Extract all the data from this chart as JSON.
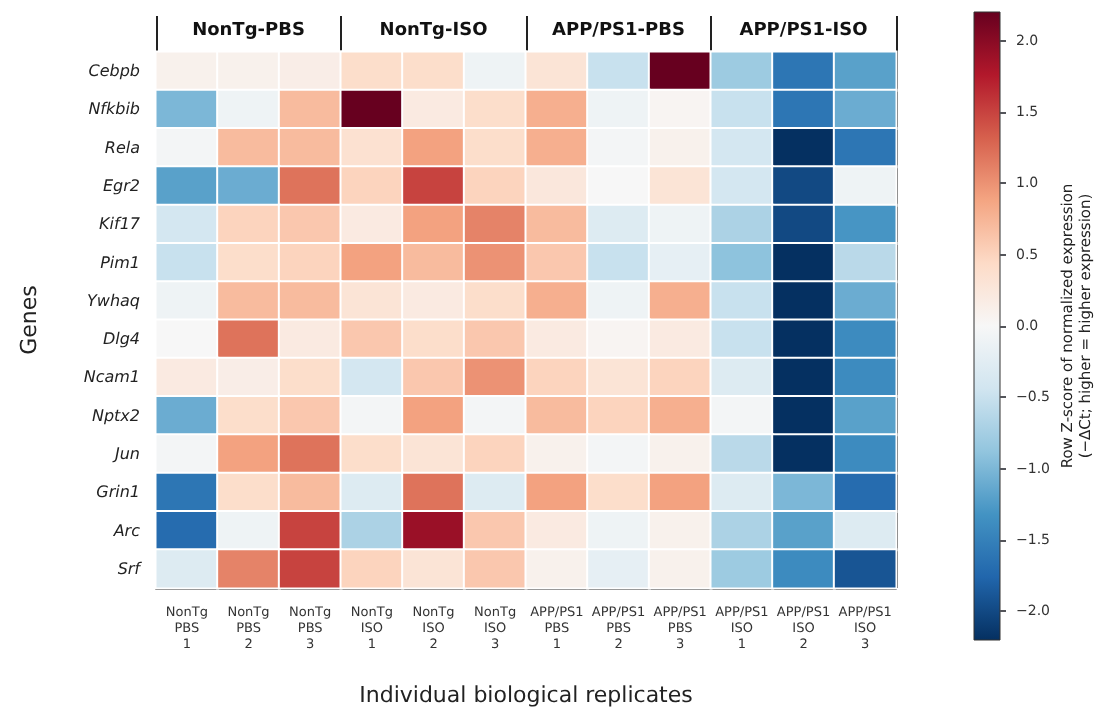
{
  "chart_data": {
    "type": "heatmap",
    "xlabel": "Individual biological replicates",
    "ylabel": "Genes",
    "clabel": "Row Z-score of normalized expression\n(−ΔCt; higher = higher expression)",
    "annotations": [
      "NonTg-PBS",
      "NonTg-ISO",
      "APP/PS1-PBS",
      "APP/PS1-ISO"
    ],
    "categories": [
      "NonTg\nPBS\n1",
      "NonTg\nPBS\n2",
      "NonTg\nPBS\n3",
      "NonTg\nISO\n1",
      "NonTg\nISO\n2",
      "NonTg\nISO\n3",
      "APP/PS1\nPBS\n1",
      "APP/PS1\nPBS\n2",
      "APP/PS1\nPBS\n3",
      "APP/PS1\nISO\n1",
      "APP/PS1\nISO\n2",
      "APP/PS1\nISO\n3"
    ],
    "y_categories": [
      "Cebpb",
      "Nfkbib",
      "Rela",
      "Egr2",
      "Kif17",
      "Pim1",
      "Ywhaq",
      "Dlg4",
      "Ncam1",
      "Nptx2",
      "Jun",
      "Grin1",
      "Arc",
      "Srf"
    ],
    "cells": [
      [
        0.1,
        0.1,
        0.15,
        0.4,
        0.4,
        -0.1,
        0.3,
        -0.5,
        2.2,
        -0.8,
        -1.6,
        -1.2
      ],
      [
        -1.0,
        -0.1,
        0.7,
        2.2,
        0.2,
        0.4,
        0.8,
        -0.1,
        0.05,
        -0.5,
        -1.6,
        -1.1
      ],
      [
        -0.05,
        0.7,
        0.7,
        0.35,
        0.9,
        0.4,
        0.8,
        -0.05,
        0.1,
        -0.4,
        -2.2,
        -1.6
      ],
      [
        -1.2,
        -1.1,
        1.2,
        0.5,
        1.5,
        0.5,
        0.25,
        0.0,
        0.3,
        -0.4,
        -2.0,
        -0.1
      ],
      [
        -0.4,
        0.5,
        0.6,
        0.2,
        0.9,
        1.1,
        0.7,
        -0.3,
        -0.1,
        -0.7,
        -2.0,
        -1.3
      ],
      [
        -0.5,
        0.4,
        0.5,
        0.9,
        0.7,
        1.0,
        0.6,
        -0.5,
        -0.2,
        -0.9,
        -2.2,
        -0.6
      ],
      [
        -0.1,
        0.7,
        0.7,
        0.3,
        0.2,
        0.4,
        0.8,
        -0.1,
        0.8,
        -0.5,
        -2.2,
        -1.1
      ],
      [
        0.0,
        1.2,
        0.2,
        0.6,
        0.4,
        0.6,
        0.2,
        0.05,
        0.2,
        -0.5,
        -2.2,
        -1.4
      ],
      [
        0.2,
        0.15,
        0.4,
        -0.4,
        0.6,
        1.0,
        0.5,
        0.3,
        0.5,
        -0.3,
        -2.2,
        -1.4
      ],
      [
        -1.1,
        0.4,
        0.6,
        -0.05,
        0.9,
        -0.05,
        0.7,
        0.5,
        0.8,
        -0.05,
        -2.2,
        -1.2
      ],
      [
        -0.05,
        0.9,
        1.2,
        0.4,
        0.3,
        0.5,
        0.1,
        -0.05,
        0.1,
        -0.6,
        -2.2,
        -1.4
      ],
      [
        -1.6,
        0.4,
        0.7,
        -0.3,
        1.2,
        -0.3,
        0.9,
        0.4,
        0.9,
        -0.3,
        -1.0,
        -1.7
      ],
      [
        -1.7,
        -0.1,
        1.5,
        -0.7,
        1.9,
        0.6,
        0.2,
        -0.1,
        0.1,
        -0.7,
        -1.2,
        -0.3
      ],
      [
        -0.3,
        1.1,
        1.5,
        0.5,
        0.3,
        0.6,
        0.1,
        -0.2,
        0.1,
        -0.8,
        -1.4,
        -1.9
      ]
    ],
    "clim": [
      -2.2,
      2.2
    ],
    "cticks": [
      {
        "value": -2,
        "label": "−2.0"
      },
      {
        "value": -1.5,
        "label": "−1.5"
      },
      {
        "value": -1,
        "label": "−1.0"
      },
      {
        "value": -0.5,
        "label": "−0.5"
      },
      {
        "value": 0,
        "label": "0.0"
      },
      {
        "value": 0.5,
        "label": "0.5"
      },
      {
        "value": 1,
        "label": "1.0"
      },
      {
        "value": 1.5,
        "label": "1.5"
      },
      {
        "value": 2,
        "label": "2.0"
      }
    ]
  }
}
